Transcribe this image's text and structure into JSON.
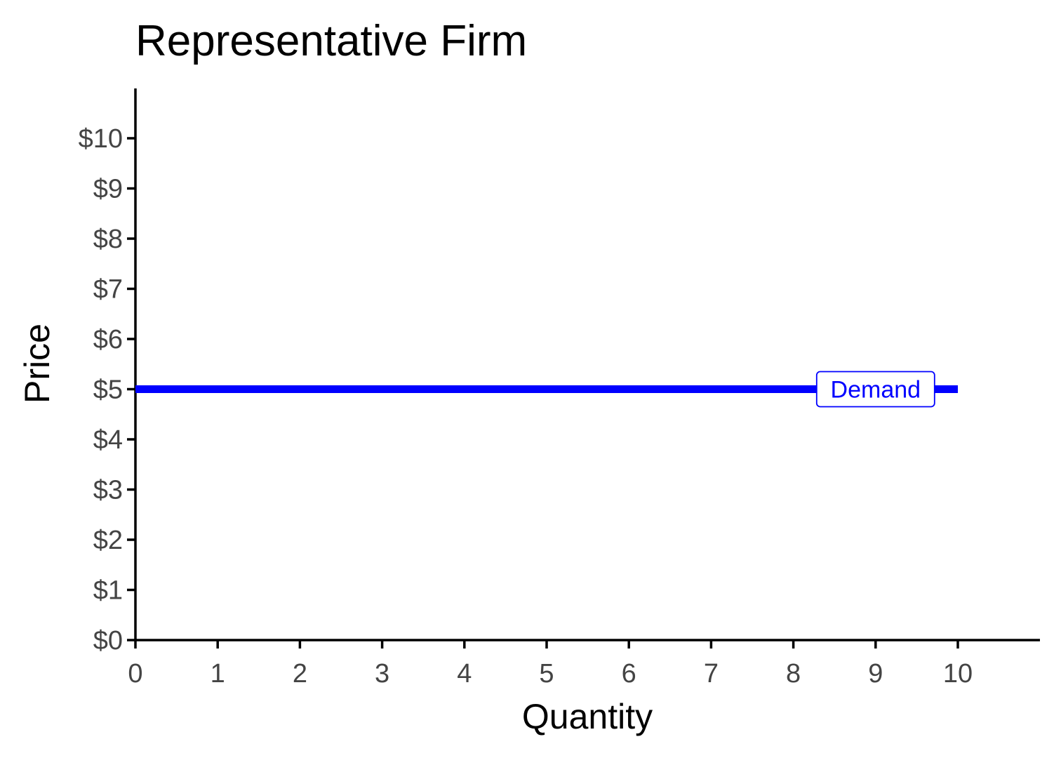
{
  "chart_data": {
    "type": "line",
    "title": "Representative Firm",
    "xlabel": "Quantity",
    "ylabel": "Price",
    "xlim": [
      0,
      11
    ],
    "ylim": [
      0,
      11
    ],
    "x_ticks": [
      0,
      1,
      2,
      3,
      4,
      5,
      6,
      7,
      8,
      9,
      10
    ],
    "x_tick_labels": [
      "0",
      "1",
      "2",
      "3",
      "4",
      "5",
      "6",
      "7",
      "8",
      "9",
      "10"
    ],
    "y_ticks": [
      0,
      1,
      2,
      3,
      4,
      5,
      6,
      7,
      8,
      9,
      10
    ],
    "y_tick_labels": [
      "$0",
      "$1",
      "$2",
      "$3",
      "$4",
      "$5",
      "$6",
      "$7",
      "$8",
      "$9",
      "$10"
    ],
    "grid": false,
    "legend": "none",
    "series": [
      {
        "name": "Demand",
        "color": "#0000ff",
        "x": [
          0,
          10
        ],
        "y": [
          5,
          5
        ],
        "label_x": 9
      }
    ]
  }
}
